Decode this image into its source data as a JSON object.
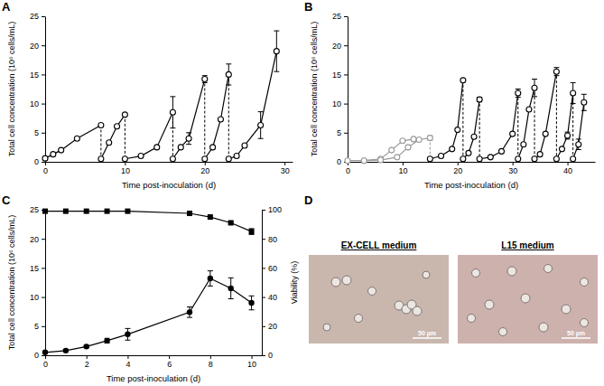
{
  "chart_data": [
    {
      "type": "line",
      "panel": "A",
      "marker": "open-circle",
      "x_label": "Time post-inoculation (d)",
      "y_label": "Total cell concentration (10⁶ cells/mL)",
      "xlim": [
        0,
        31
      ],
      "xticks": [
        0,
        10,
        20,
        30
      ],
      "ylim": [
        0,
        25
      ],
      "yticks": [
        0,
        5,
        10,
        15,
        20,
        25
      ],
      "series": [
        {
          "color": "#000000",
          "x": [
            0,
            1,
            2,
            4,
            7
          ],
          "values": [
            0.6,
            1.3,
            2.0,
            4.0,
            6.3
          ]
        },
        {
          "color": "#000000",
          "x": [
            7,
            8,
            9,
            10
          ],
          "values": [
            0.5,
            3.3,
            6.1,
            8.1
          ]
        },
        {
          "color": "#000000",
          "x": [
            10,
            12,
            14,
            16
          ],
          "values": [
            0.5,
            1.0,
            2.5,
            8.5
          ],
          "errors": [
            null,
            null,
            null,
            2.7
          ]
        },
        {
          "color": "#000000",
          "x": [
            16,
            17,
            18,
            20
          ],
          "values": [
            0.5,
            2.5,
            4.0,
            14.2
          ],
          "errors": [
            null,
            null,
            1.0,
            0.6
          ]
        },
        {
          "color": "#000000",
          "x": [
            20,
            21,
            22,
            23
          ],
          "values": [
            0.5,
            2.5,
            7.3,
            15.0
          ],
          "errors": [
            null,
            null,
            null,
            1.8
          ]
        },
        {
          "color": "#000000",
          "x": [
            23,
            24,
            25,
            27,
            29
          ],
          "values": [
            0.5,
            1.0,
            2.8,
            6.3,
            19.0
          ],
          "errors": [
            null,
            null,
            null,
            2.3,
            3.5
          ]
        }
      ]
    },
    {
      "type": "line",
      "panel": "B",
      "marker": "open-circle",
      "x_label": "Time post-inoculation (d)",
      "y_label": "Total cell concentration (10⁶ cells/mL)",
      "xlim": [
        0,
        45
      ],
      "xticks": [
        0,
        10,
        20,
        30,
        40
      ],
      "ylim": [
        0,
        25
      ],
      "yticks": [
        0,
        5,
        10,
        15,
        20,
        25
      ],
      "series": [
        {
          "color": "#999999",
          "x": [
            0,
            3,
            6,
            8,
            10,
            12
          ],
          "values": [
            0.2,
            0.2,
            0.5,
            2.0,
            3.6,
            3.9
          ]
        },
        {
          "color": "#999999",
          "x": [
            3,
            6,
            9,
            11,
            13,
            15
          ],
          "values": [
            0.2,
            0.3,
            0.8,
            2.5,
            3.8,
            4.1
          ],
          "errors": [
            null,
            null,
            null,
            null,
            null,
            0.4
          ]
        },
        {
          "color": "#000000",
          "x": [
            15,
            17,
            19,
            20,
            21
          ],
          "values": [
            0.5,
            1.0,
            2.2,
            5.5,
            14.0
          ]
        },
        {
          "color": "#000000",
          "x": [
            21,
            22,
            23,
            24
          ],
          "values": [
            0.5,
            1.5,
            4.3,
            10.7
          ],
          "errors": [
            null,
            null,
            null,
            0.4
          ]
        },
        {
          "color": "#000000",
          "x": [
            24,
            26,
            28,
            30,
            31
          ],
          "values": [
            0.5,
            0.8,
            1.8,
            4.8,
            11.8
          ],
          "errors": [
            null,
            null,
            null,
            null,
            0.7
          ]
        },
        {
          "color": "#000000",
          "x": [
            31,
            32,
            33,
            34
          ],
          "values": [
            0.5,
            3.0,
            9.0,
            12.7
          ],
          "errors": [
            null,
            null,
            null,
            1.5
          ]
        },
        {
          "color": "#000000",
          "x": [
            34,
            35,
            36,
            38
          ],
          "values": [
            0.5,
            1.3,
            4.8,
            15.5
          ],
          "errors": [
            null,
            null,
            null,
            0.7
          ]
        },
        {
          "color": "#000000",
          "x": [
            38,
            39,
            40,
            41
          ],
          "values": [
            0.5,
            2.2,
            4.5,
            11.8
          ],
          "errors": [
            null,
            null,
            0.6,
            1.8
          ]
        },
        {
          "color": "#000000",
          "x": [
            41,
            42,
            43
          ],
          "values": [
            0.5,
            3.0,
            10.2
          ],
          "errors": [
            null,
            0.9,
            1.4
          ]
        }
      ]
    },
    {
      "type": "line",
      "panel": "C",
      "x_label": "Time post-inoculation (d)",
      "y_label": "Total cell concentration (10⁶ cells/mL)",
      "y2_label": "Viability (%)",
      "xlim": [
        0,
        10.5
      ],
      "xticks": [
        0,
        2,
        4,
        6,
        8,
        10
      ],
      "ylim": [
        0,
        25
      ],
      "yticks": [
        0,
        5,
        10,
        15,
        20,
        25
      ],
      "y2lim": [
        0,
        100
      ],
      "y2ticks": [
        0,
        20,
        40,
        60,
        80,
        100
      ],
      "x": [
        0,
        1,
        2,
        3,
        4,
        7,
        8,
        9,
        10
      ],
      "series": [
        {
          "color": "#000000",
          "marker": "circle",
          "values": [
            0.5,
            0.8,
            1.5,
            2.5,
            3.6,
            7.4,
            13.2,
            11.5,
            9.0
          ],
          "errors": [
            0.1,
            0.2,
            0.2,
            0.4,
            1.0,
            0.9,
            1.3,
            1.8,
            1.2
          ]
        },
        {
          "color": "#000000",
          "marker": "square",
          "axis": "y2",
          "values": [
            99,
            99,
            99,
            99,
            99,
            97.5,
            95,
            91,
            85
          ],
          "errors": [
            null,
            null,
            null,
            null,
            null,
            null,
            null,
            0.8,
            2.0
          ]
        }
      ]
    }
  ],
  "micrographs": {
    "panel": "D",
    "items": [
      {
        "title": "EX-CELL medium",
        "scale_bar": "50 µm"
      },
      {
        "title": "L15 medium",
        "scale_bar": "50 µm"
      }
    ]
  }
}
